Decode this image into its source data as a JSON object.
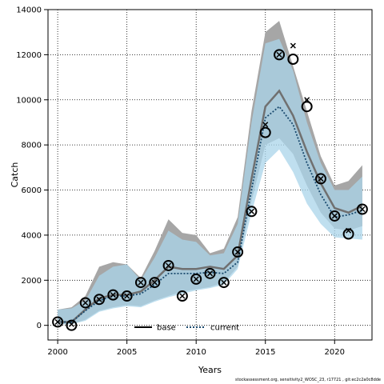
{
  "chart_data": {
    "type": "line",
    "xlabel": "Years",
    "ylabel": "Catch",
    "xlim": [
      1999.3,
      2022.7
    ],
    "ylim": [
      -650,
      14000
    ],
    "x_ticks": [
      2000,
      2005,
      2010,
      2015,
      2020
    ],
    "y_ticks": [
      0,
      2000,
      4000,
      6000,
      8000,
      10000,
      12000,
      14000
    ],
    "grid": true,
    "legend_position": "bottom-center",
    "colors": {
      "base_band": "#a6a6a6",
      "current_band": "#a9d4ea",
      "base_line": "#707070",
      "current_line": "#1a4a6e",
      "overlap": "#8fb6c9"
    },
    "years": [
      2000,
      2001,
      2002,
      2003,
      2004,
      2005,
      2006,
      2007,
      2008,
      2009,
      2010,
      2011,
      2012,
      2013,
      2014,
      2015,
      2016,
      2017,
      2018,
      2019,
      2020,
      2021,
      2022
    ],
    "series": [
      {
        "name": "base",
        "style": "solid",
        "values": [
          150,
          150,
          700,
          1200,
          1350,
          1350,
          1500,
          2000,
          2600,
          2500,
          2500,
          2600,
          2500,
          3100,
          6500,
          9700,
          10400,
          9300,
          7700,
          6300,
          5200,
          5000,
          5300
        ],
        "lower": [
          50,
          50,
          250,
          650,
          800,
          900,
          850,
          1100,
          1300,
          1500,
          1600,
          1700,
          1900,
          2600,
          5500,
          8000,
          8300,
          7600,
          6200,
          5000,
          4300,
          4200,
          4400
        ],
        "upper": [
          700,
          800,
          1300,
          2600,
          2800,
          2700,
          2100,
          3300,
          4700,
          4100,
          4000,
          3200,
          3400,
          4800,
          9500,
          13000,
          13500,
          11500,
          9500,
          7500,
          6200,
          6400,
          7100
        ]
      },
      {
        "name": "current",
        "style": "dashed",
        "values": [
          150,
          150,
          650,
          1100,
          1300,
          1300,
          1400,
          1800,
          2300,
          2300,
          2300,
          2350,
          2300,
          2800,
          6000,
          9200,
          9700,
          8900,
          7200,
          5800,
          4800,
          4900,
          5100
        ],
        "lower": [
          50,
          50,
          200,
          600,
          750,
          850,
          800,
          1050,
          1250,
          1400,
          1550,
          1650,
          1800,
          2500,
          5000,
          7200,
          7800,
          6800,
          5400,
          4500,
          3900,
          3850,
          3800
        ],
        "upper": [
          700,
          750,
          1100,
          2200,
          2600,
          2700,
          2000,
          3000,
          4200,
          3800,
          3700,
          3100,
          3200,
          4500,
          9000,
          12500,
          12700,
          11300,
          9000,
          7200,
          6000,
          6000,
          6600
        ]
      }
    ],
    "observed_circles": [
      [
        2000,
        150
      ],
      [
        2001,
        0
      ],
      [
        2002,
        1000
      ],
      [
        2003,
        1150
      ],
      [
        2004,
        1350
      ],
      [
        2005,
        1300
      ],
      [
        2006,
        1900
      ],
      [
        2007,
        1900
      ],
      [
        2008,
        2650
      ],
      [
        2009,
        1300
      ],
      [
        2010,
        2050
      ],
      [
        2011,
        2300
      ],
      [
        2012,
        1900
      ],
      [
        2013,
        3250
      ],
      [
        2014,
        5050
      ],
      [
        2015,
        8550
      ],
      [
        2016,
        12000
      ],
      [
        2017,
        11800
      ],
      [
        2018,
        9700
      ],
      [
        2019,
        6500
      ],
      [
        2020,
        4850
      ],
      [
        2021,
        4050
      ],
      [
        2022,
        5150
      ]
    ],
    "observed_crosses": [
      [
        2000,
        150
      ],
      [
        2001,
        50
      ],
      [
        2002,
        1000
      ],
      [
        2003,
        1150
      ],
      [
        2004,
        1350
      ],
      [
        2005,
        1300
      ],
      [
        2006,
        1900
      ],
      [
        2007,
        1900
      ],
      [
        2008,
        2650
      ],
      [
        2009,
        1300
      ],
      [
        2010,
        2050
      ],
      [
        2011,
        2300
      ],
      [
        2012,
        1900
      ],
      [
        2013,
        3250
      ],
      [
        2014,
        5050
      ],
      [
        2015,
        8900
      ],
      [
        2016,
        12000
      ],
      [
        2017,
        12400
      ],
      [
        2018,
        10000
      ],
      [
        2019,
        6500
      ],
      [
        2020,
        4850
      ],
      [
        2021,
        4200
      ],
      [
        2022,
        5150
      ]
    ]
  },
  "footer": "stockassessment.org, sensitivity2_WOSC_23, r17721 , git:ec2c2a0c8dde"
}
